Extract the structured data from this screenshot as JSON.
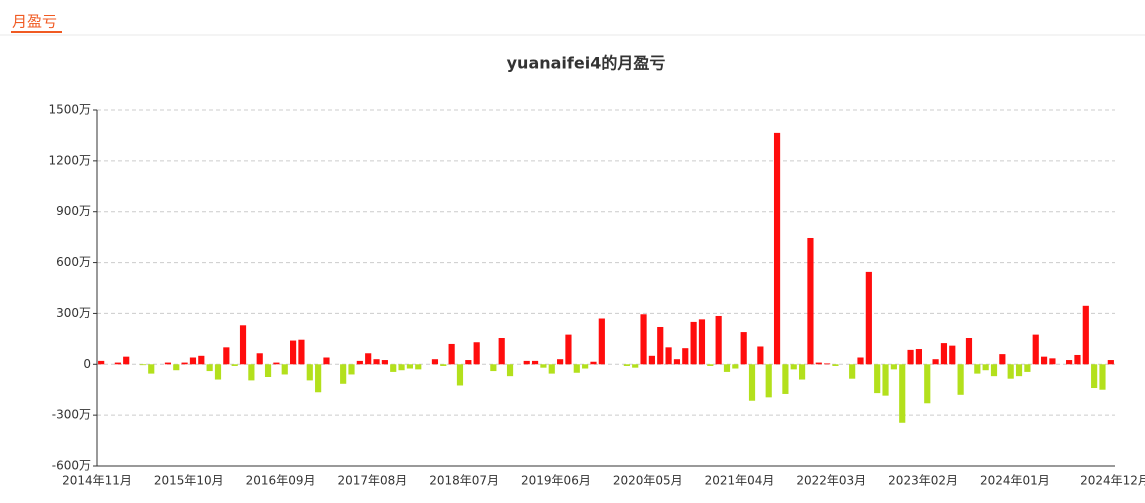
{
  "tab": "月盈亏",
  "chart_data": {
    "type": "bar",
    "title": "yuanaifei4的月盈亏",
    "categories": [
      "2014年11月",
      null,
      null,
      null,
      null,
      null,
      null,
      null,
      null,
      null,
      null,
      "2015年10月",
      null,
      null,
      null,
      null,
      null,
      null,
      null,
      null,
      null,
      null,
      "2016年09月",
      null,
      null,
      null,
      null,
      null,
      null,
      null,
      null,
      null,
      null,
      "2017年08月",
      null,
      null,
      null,
      null,
      null,
      null,
      null,
      null,
      null,
      null,
      "2018年07月",
      null,
      null,
      null,
      null,
      null,
      null,
      null,
      null,
      null,
      null,
      "2019年06月",
      null,
      null,
      null,
      null,
      null,
      null,
      null,
      null,
      null,
      null,
      "2020年05月",
      null,
      null,
      null,
      null,
      null,
      null,
      null,
      null,
      null,
      null,
      "2021年04月",
      null,
      null,
      null,
      null,
      null,
      null,
      null,
      null,
      null,
      null,
      "2022年03月",
      null,
      null,
      null,
      null,
      null,
      null,
      null,
      null,
      null,
      null,
      "2023年02月",
      null,
      null,
      null,
      null,
      null,
      null,
      null,
      null,
      null,
      null,
      "2024年01月",
      null,
      null,
      null,
      null,
      null,
      null,
      null,
      null,
      null,
      null,
      "2024年12月"
    ],
    "values": [
      20,
      0,
      10,
      45,
      0,
      -5,
      -55,
      0,
      10,
      -35,
      10,
      40,
      50,
      -40,
      -90,
      100,
      -10,
      230,
      -95,
      65,
      -75,
      10,
      -60,
      140,
      145,
      -95,
      -165,
      40,
      0,
      -115,
      -60,
      20,
      65,
      30,
      25,
      -45,
      -35,
      -25,
      -30,
      0,
      30,
      -10,
      120,
      -125,
      25,
      130,
      0,
      -40,
      155,
      -70,
      0,
      20,
      20,
      -20,
      -55,
      30,
      175,
      -50,
      -25,
      15,
      270,
      0,
      0,
      -10,
      -20,
      295,
      50,
      220,
      100,
      30,
      95,
      250,
      265,
      -10,
      285,
      -45,
      -25,
      190,
      -215,
      105,
      -195,
      1365,
      -175,
      -30,
      -90,
      745,
      10,
      5,
      -10,
      0,
      -85,
      40,
      545,
      -170,
      -185,
      -30,
      -345,
      85,
      90,
      -230,
      30,
      125,
      110,
      -180,
      155,
      -55,
      -35,
      -70,
      60,
      -85,
      -70,
      -45,
      175,
      45,
      35,
      0,
      25,
      55,
      345,
      -140,
      -150,
      25
    ],
    "positive_color": "#ff0d0d",
    "negative_color": "#b3e01c",
    "ylim": [
      -600,
      1500
    ],
    "yticks": [
      {
        "value": -600,
        "label": "-600万"
      },
      {
        "value": -300,
        "label": "-300万"
      },
      {
        "value": 0,
        "label": "0"
      },
      {
        "value": 300,
        "label": "300万"
      },
      {
        "value": 600,
        "label": "600万"
      },
      {
        "value": 900,
        "label": "900万"
      },
      {
        "value": 1200,
        "label": "1200万"
      },
      {
        "value": 1500,
        "label": "1500万"
      }
    ],
    "grid": true
  }
}
